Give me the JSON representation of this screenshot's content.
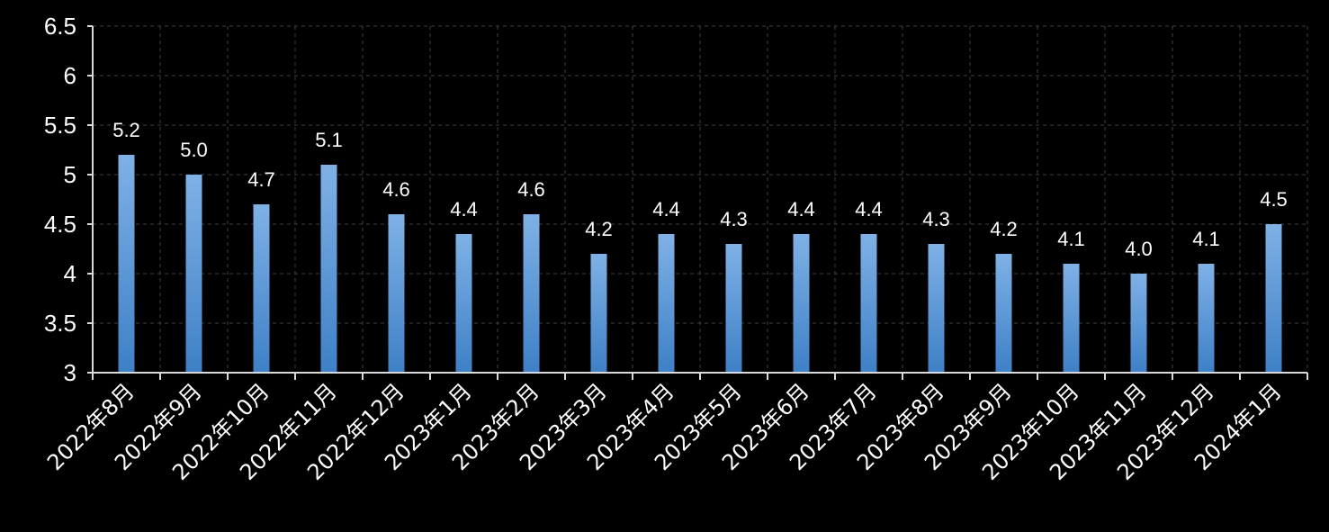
{
  "chart_data": {
    "type": "bar",
    "categories": [
      "2022年8月",
      "2022年9月",
      "2022年10月",
      "2022年11月",
      "2022年12月",
      "2023年1月",
      "2023年2月",
      "2023年3月",
      "2023年4月",
      "2023年5月",
      "2023年6月",
      "2023年7月",
      "2023年8月",
      "2023年9月",
      "2023年10月",
      "2023年11月",
      "2023年12月",
      "2024年1月"
    ],
    "values": [
      5.2,
      5.0,
      4.7,
      5.1,
      4.6,
      4.4,
      4.6,
      4.2,
      4.4,
      4.3,
      4.4,
      4.4,
      4.3,
      4.2,
      4.1,
      4.0,
      4.1,
      4.5
    ],
    "data_labels": [
      "5.2",
      "5.0",
      "4.7",
      "5.1",
      "4.6",
      "4.4",
      "4.6",
      "4.2",
      "4.4",
      "4.3",
      "4.4",
      "4.4",
      "4.3",
      "4.2",
      "4.1",
      "4.0",
      "4.1",
      "4.5"
    ],
    "y_ticks": [
      "3",
      "3.5",
      "4",
      "4.5",
      "5",
      "5.5",
      "6",
      "6.5"
    ],
    "ylim": [
      3,
      6.5
    ],
    "grid": true,
    "legend": "none",
    "colors": {
      "background": "#000000",
      "bar_top": "#7fb1e6",
      "bar_bottom": "#3e80c6",
      "text": "#ffffff",
      "grid": "#404040",
      "axis": "#d9d9d9"
    }
  }
}
